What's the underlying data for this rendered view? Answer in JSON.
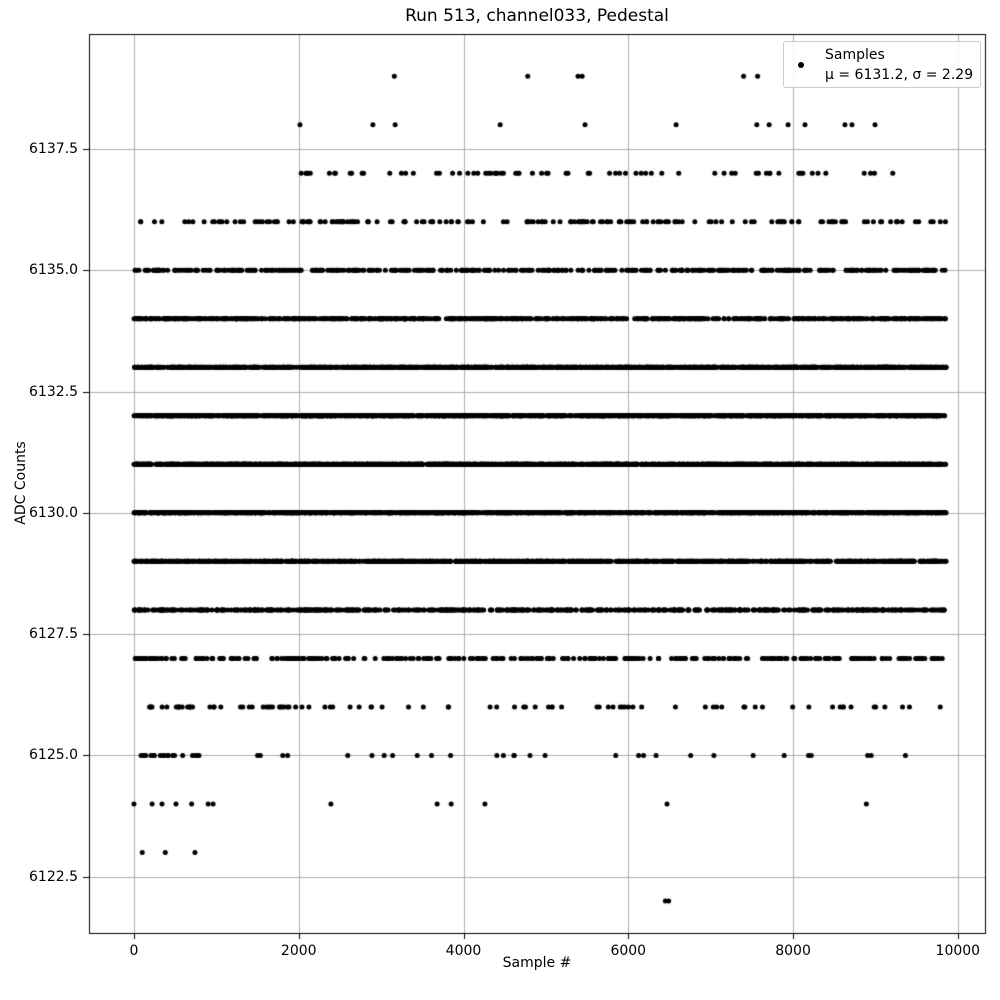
{
  "figure": {
    "background": "#ffffff"
  },
  "colors": {
    "dot": "#000000",
    "grid": "#b0b0b0",
    "spine": "#000000",
    "text": "#000000",
    "legend_edge": "#cccccc"
  },
  "chart_data": {
    "type": "scatter",
    "title": "Run 513, channel033, Pedestal",
    "xlabel": "Sample #",
    "ylabel": "ADC Counts",
    "legend": {
      "position": "upper right",
      "label_line1": "Samples",
      "label_line2": "μ = 6131.2, σ = 2.29"
    },
    "stats": {
      "mu": 6131.2,
      "sigma": 2.29
    },
    "grid": true,
    "xlim": [
      -546,
      10330
    ],
    "ylim": [
      6121.34,
      6139.87
    ],
    "x_ticks": [
      0,
      2000,
      4000,
      6000,
      8000,
      10000
    ],
    "x_tick_labels": [
      "0",
      "2000",
      "4000",
      "6000",
      "8000",
      "10000"
    ],
    "y_ticks": [
      6122.5,
      6125.0,
      6127.5,
      6130.0,
      6132.5,
      6135.0,
      6137.5
    ],
    "y_tick_labels": [
      "6122.5",
      "6125.0",
      "6127.5",
      "6130.0",
      "6132.5",
      "6135.0",
      "6137.5"
    ],
    "n_samples": 9860,
    "x_max": 9860,
    "marker_radius": 2.5,
    "seed": 513,
    "levels_generated": [
      {
        "adc": 6125,
        "segments": [
          [
            0,
            1000,
            18
          ],
          [
            1000,
            9860,
            30
          ]
        ]
      },
      {
        "adc": 6126,
        "segments": [
          [
            0,
            1800,
            32
          ],
          [
            1800,
            9860,
            60
          ]
        ]
      },
      {
        "adc": 6127,
        "segments": [
          [
            0,
            9860,
            320
          ]
        ]
      },
      {
        "adc": 6128,
        "segments": [
          [
            0,
            9860,
            640
          ]
        ]
      },
      {
        "adc": 6129,
        "segments": [
          [
            0,
            9860,
            1050
          ]
        ]
      },
      {
        "adc": 6130,
        "segments": [
          [
            0,
            9860,
            1430
          ]
        ]
      },
      {
        "adc": 6131,
        "segments": [
          [
            0,
            9860,
            1700
          ]
        ]
      },
      {
        "adc": 6132,
        "segments": [
          [
            0,
            9860,
            1600
          ]
        ]
      },
      {
        "adc": 6133,
        "segments": [
          [
            0,
            9860,
            1230
          ]
        ]
      },
      {
        "adc": 6134,
        "segments": [
          [
            0,
            9860,
            820
          ]
        ]
      },
      {
        "adc": 6135,
        "segments": [
          [
            0,
            9860,
            430
          ]
        ]
      },
      {
        "adc": 6136,
        "segments": [
          [
            50,
            9860,
            180
          ]
        ]
      },
      {
        "adc": 6137,
        "segments": [
          [
            2030,
            9250,
            72
          ]
        ]
      }
    ],
    "levels_explicit": [
      {
        "adc": 6139,
        "x": [
          3160,
          4780,
          5390,
          5440,
          7400,
          7570
        ]
      },
      {
        "adc": 6138,
        "x": [
          2015,
          2900,
          3170,
          4445,
          5475,
          6580,
          7560,
          7710,
          7940,
          8145,
          8630,
          8715,
          8995
        ]
      },
      {
        "adc": 6124,
        "x": [
          0,
          220,
          340,
          510,
          700,
          900,
          960,
          2390,
          3680,
          3850,
          4260,
          6470,
          8890
        ]
      },
      {
        "adc": 6123,
        "x": [
          100,
          380,
          740
        ]
      },
      {
        "adc": 6122,
        "x": [
          6450,
          6490
        ]
      }
    ]
  }
}
